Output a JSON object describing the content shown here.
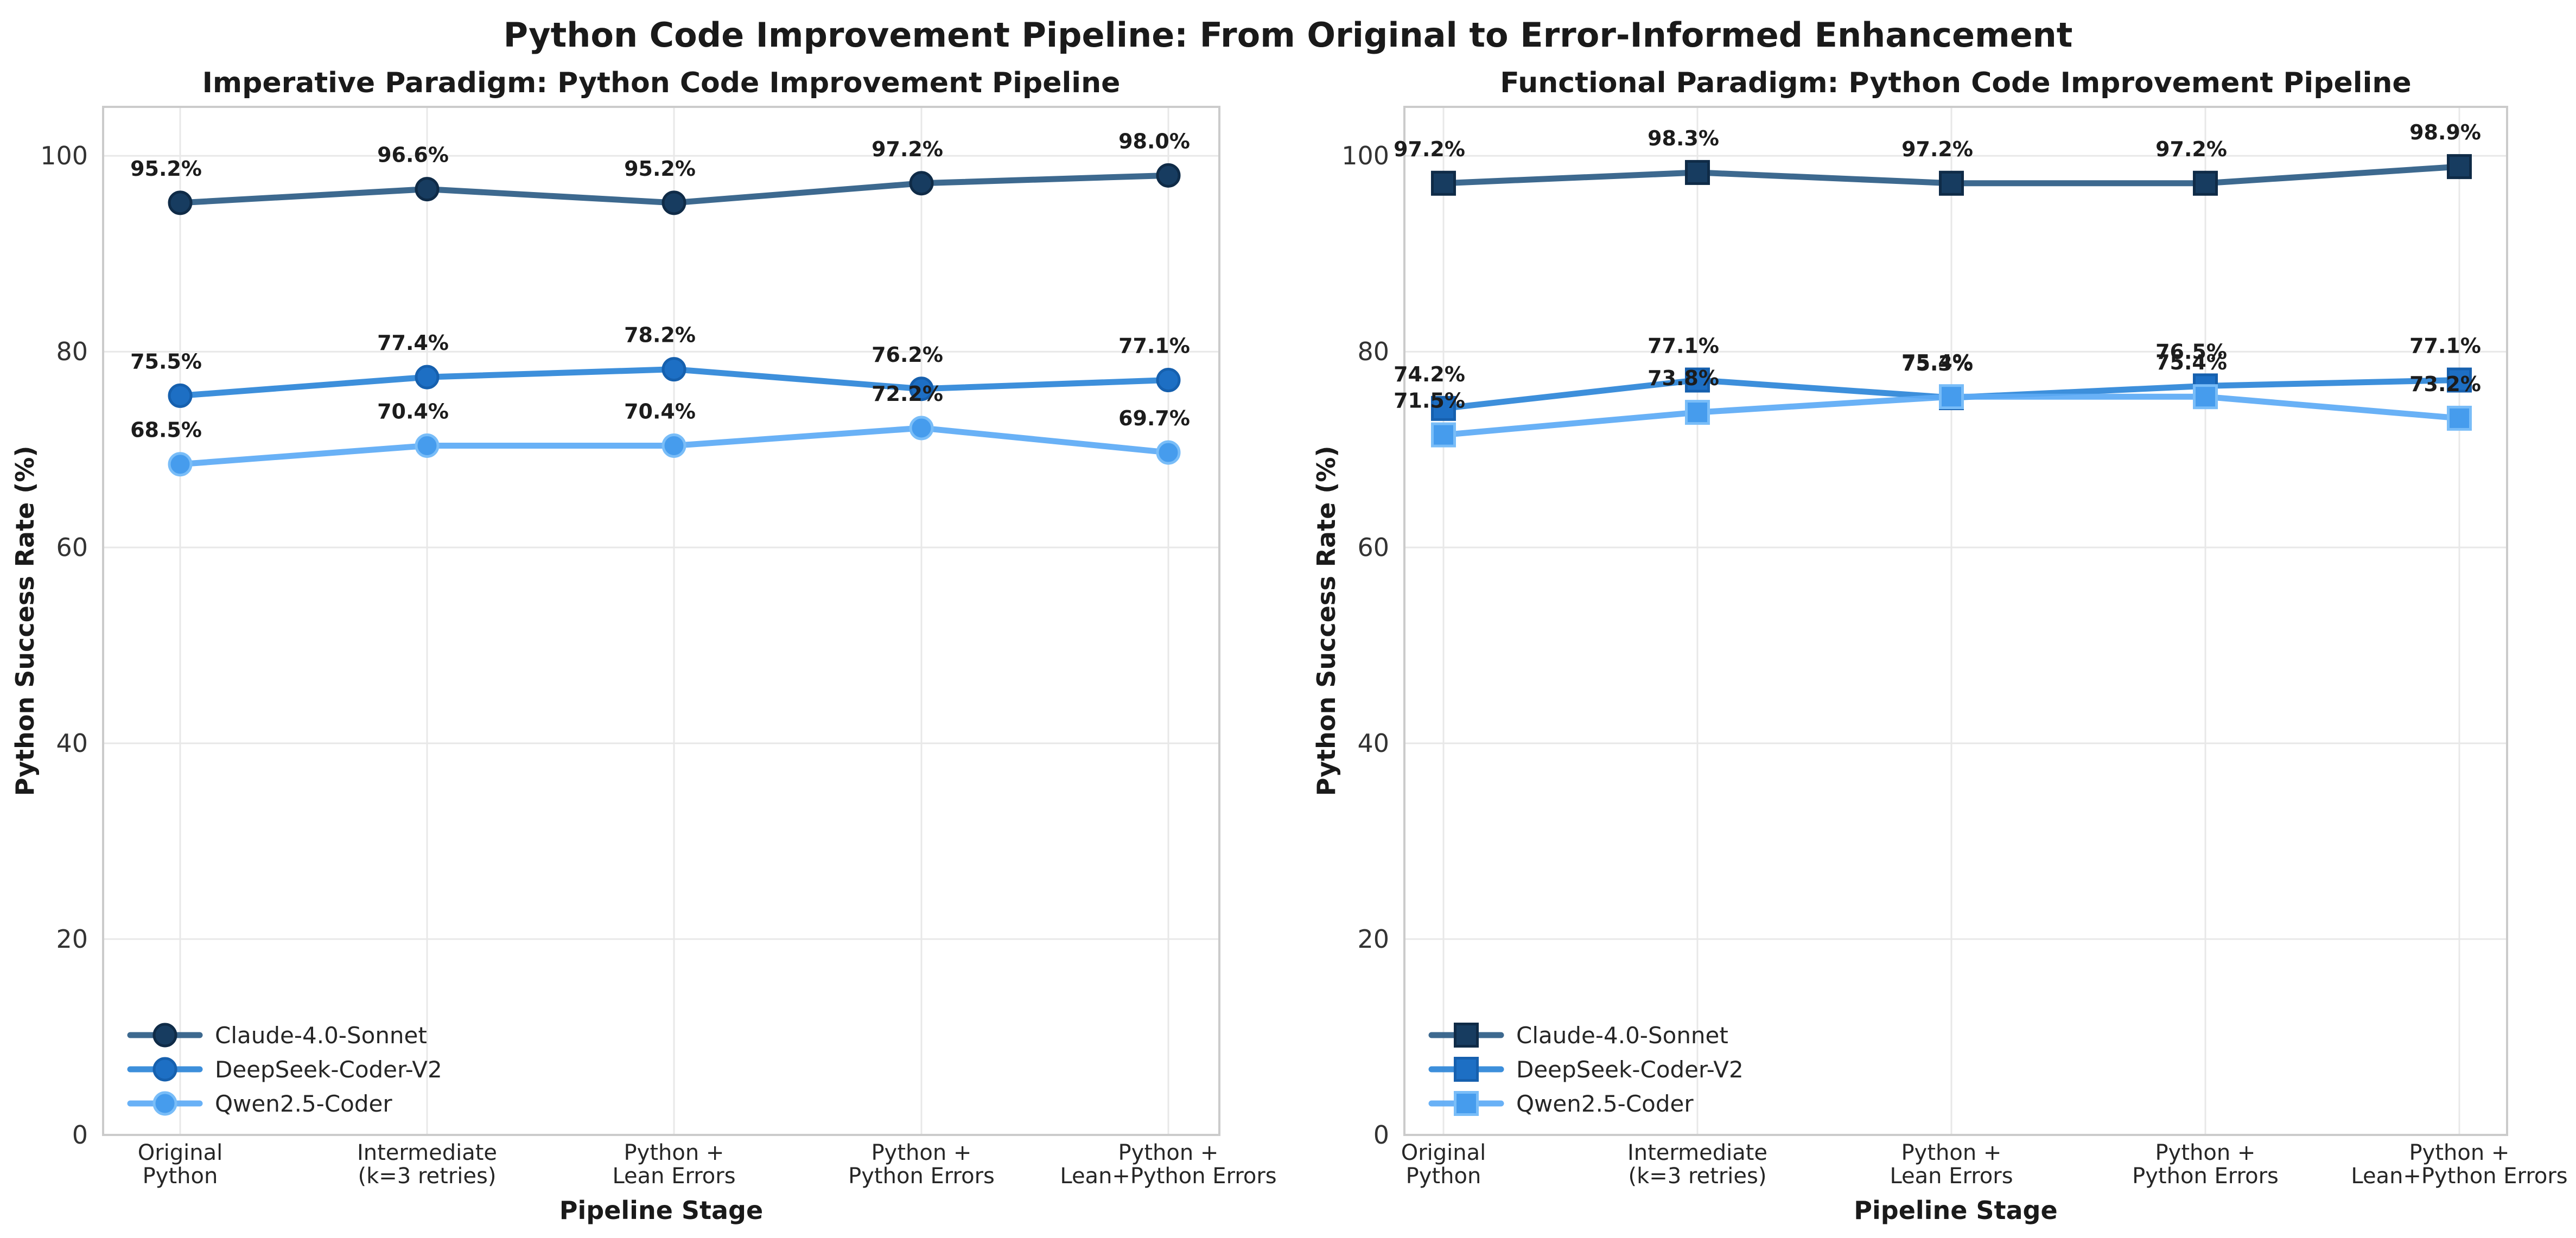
{
  "figure_title": "Python Code Improvement Pipeline: From Original to Error-Informed Enhancement",
  "style": {
    "background": "#ffffff",
    "grid_color": "#e8e8e8",
    "spine_color": "#cbcbcb",
    "title_color": "#1a1a1a",
    "tick_color": "#333333",
    "xtick_color": "#262626",
    "label_color": "#1c1c1c",
    "legend_text_color": "#262626"
  },
  "chart_data": [
    {
      "type": "line",
      "title": "Imperative Paradigm: Python Code Improvement Pipeline",
      "xlabel": "Pipeline Stage",
      "ylabel": "Python Success Rate (%)",
      "ylim": [
        0,
        105
      ],
      "yticks": [
        "0",
        "20",
        "40",
        "60",
        "80",
        "100"
      ],
      "ytick_values": [
        0,
        20,
        40,
        60,
        80,
        100
      ],
      "grid": true,
      "legend_position": "lower left",
      "marker": "circle",
      "label_suffix": "%",
      "categories": [
        [
          "Original",
          "Python"
        ],
        [
          "Intermediate",
          "(k=3 retries)"
        ],
        [
          "Python +",
          "Lean Errors"
        ],
        [
          "Python +",
          "Python Errors"
        ],
        [
          "Python +",
          "Lean+Python Errors"
        ]
      ],
      "series": [
        {
          "name": "Claude-4.0-Sonnet",
          "values": [
            95.2,
            96.6,
            95.2,
            97.2,
            98.0
          ],
          "line_color": "#2d5c85",
          "marker_fill": "#173c60",
          "marker_edge": "#0f2b47"
        },
        {
          "name": "DeepSeek-Coder-V2",
          "values": [
            75.5,
            77.4,
            78.2,
            76.2,
            77.1
          ],
          "line_color": "#2d86d8",
          "marker_fill": "#1d6fc4",
          "marker_edge": "#1660ae"
        },
        {
          "name": "Qwen2.5-Coder",
          "values": [
            68.5,
            70.4,
            70.4,
            72.2,
            69.7
          ],
          "line_color": "#5caaf5",
          "marker_fill": "#469ced",
          "marker_edge": "#79bdf8"
        }
      ]
    },
    {
      "type": "line",
      "title": "Functional Paradigm: Python Code Improvement Pipeline",
      "xlabel": "Pipeline Stage",
      "ylabel": "Python Success Rate (%)",
      "ylim": [
        0,
        105
      ],
      "yticks": [
        "0",
        "20",
        "40",
        "60",
        "80",
        "100"
      ],
      "ytick_values": [
        0,
        20,
        40,
        60,
        80,
        100
      ],
      "grid": true,
      "legend_position": "lower left",
      "marker": "square",
      "label_suffix": "%",
      "categories": [
        [
          "Original",
          "Python"
        ],
        [
          "Intermediate",
          "(k=3 retries)"
        ],
        [
          "Python +",
          "Lean Errors"
        ],
        [
          "Python +",
          "Python Errors"
        ],
        [
          "Python +",
          "Lean+Python Errors"
        ]
      ],
      "series": [
        {
          "name": "Claude-4.0-Sonnet",
          "values": [
            97.2,
            98.3,
            97.2,
            97.2,
            98.9
          ],
          "line_color": "#2d5c85",
          "marker_fill": "#173c60",
          "marker_edge": "#0f2b47"
        },
        {
          "name": "DeepSeek-Coder-V2",
          "values": [
            74.2,
            77.1,
            75.3,
            76.5,
            77.1
          ],
          "line_color": "#2d86d8",
          "marker_fill": "#1d6fc4",
          "marker_edge": "#1660ae"
        },
        {
          "name": "Qwen2.5-Coder",
          "values": [
            71.5,
            73.8,
            75.4,
            75.4,
            73.2
          ],
          "line_color": "#5caaf5",
          "marker_fill": "#469ced",
          "marker_edge": "#79bdf8"
        }
      ]
    }
  ]
}
